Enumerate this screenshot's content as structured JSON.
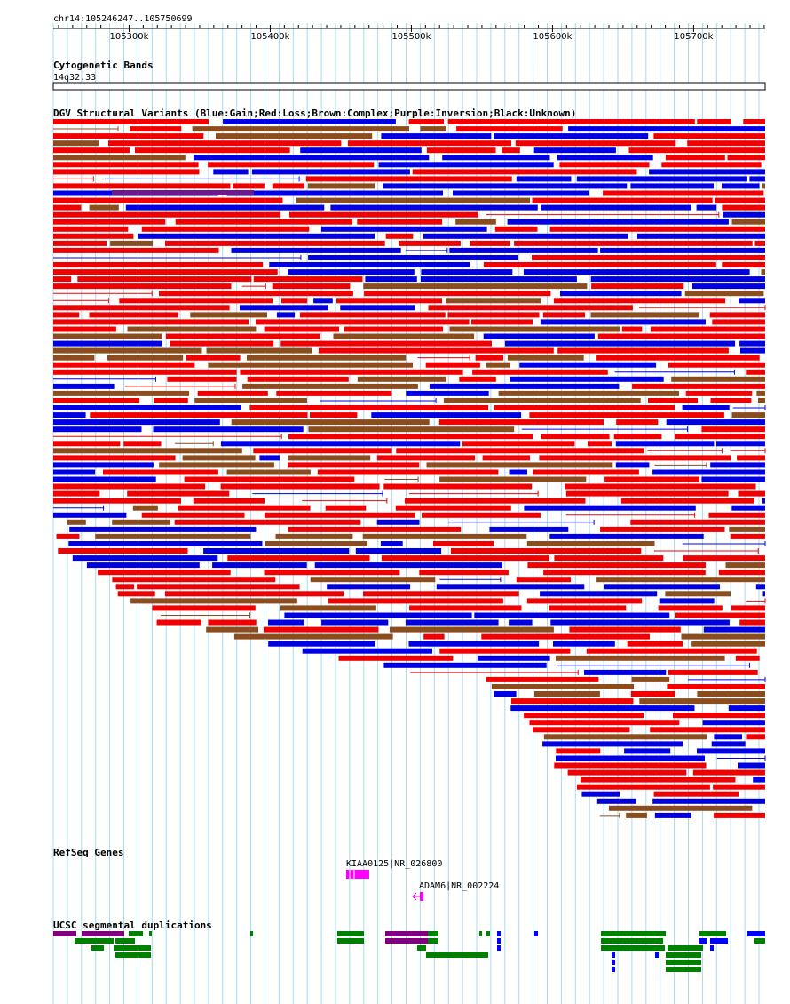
{
  "ruler": {
    "region": "chr14:105246247..105750699",
    "ticks": [
      "105300k",
      "105400k",
      "105500k",
      "105600k",
      "105700k"
    ],
    "tick_values_kb": [
      105300,
      105400,
      105500,
      105600,
      105700
    ]
  },
  "tracks": {
    "cytoband": {
      "title": "Cytogenetic Bands",
      "band": "14q32.33"
    },
    "dgv": {
      "title": "DGV Structural Variants (Blue:Gain;Red:Loss;Brown:Complex;Purple:Inversion;Black:Unknown)",
      "legend_colors": {
        "gain": "#0000e0",
        "loss": "#f00000",
        "complex": "#8b4c1e",
        "inversion": "#6a1a8a",
        "unknown": "#000000"
      }
    },
    "refseq": {
      "title": "RefSeq Genes",
      "genes": [
        {
          "label": "KIAA0125|NR_026800",
          "color": "#ff00ff"
        },
        {
          "label": "ADAM6|NR_002224",
          "color": "#ff00ff"
        }
      ]
    },
    "segdup": {
      "title": "UCSC segmental duplications",
      "colors": {
        "purple": "#800080",
        "green": "#008000",
        "blue": "#0000ff"
      }
    }
  },
  "grid_color": "#a8d8f0"
}
